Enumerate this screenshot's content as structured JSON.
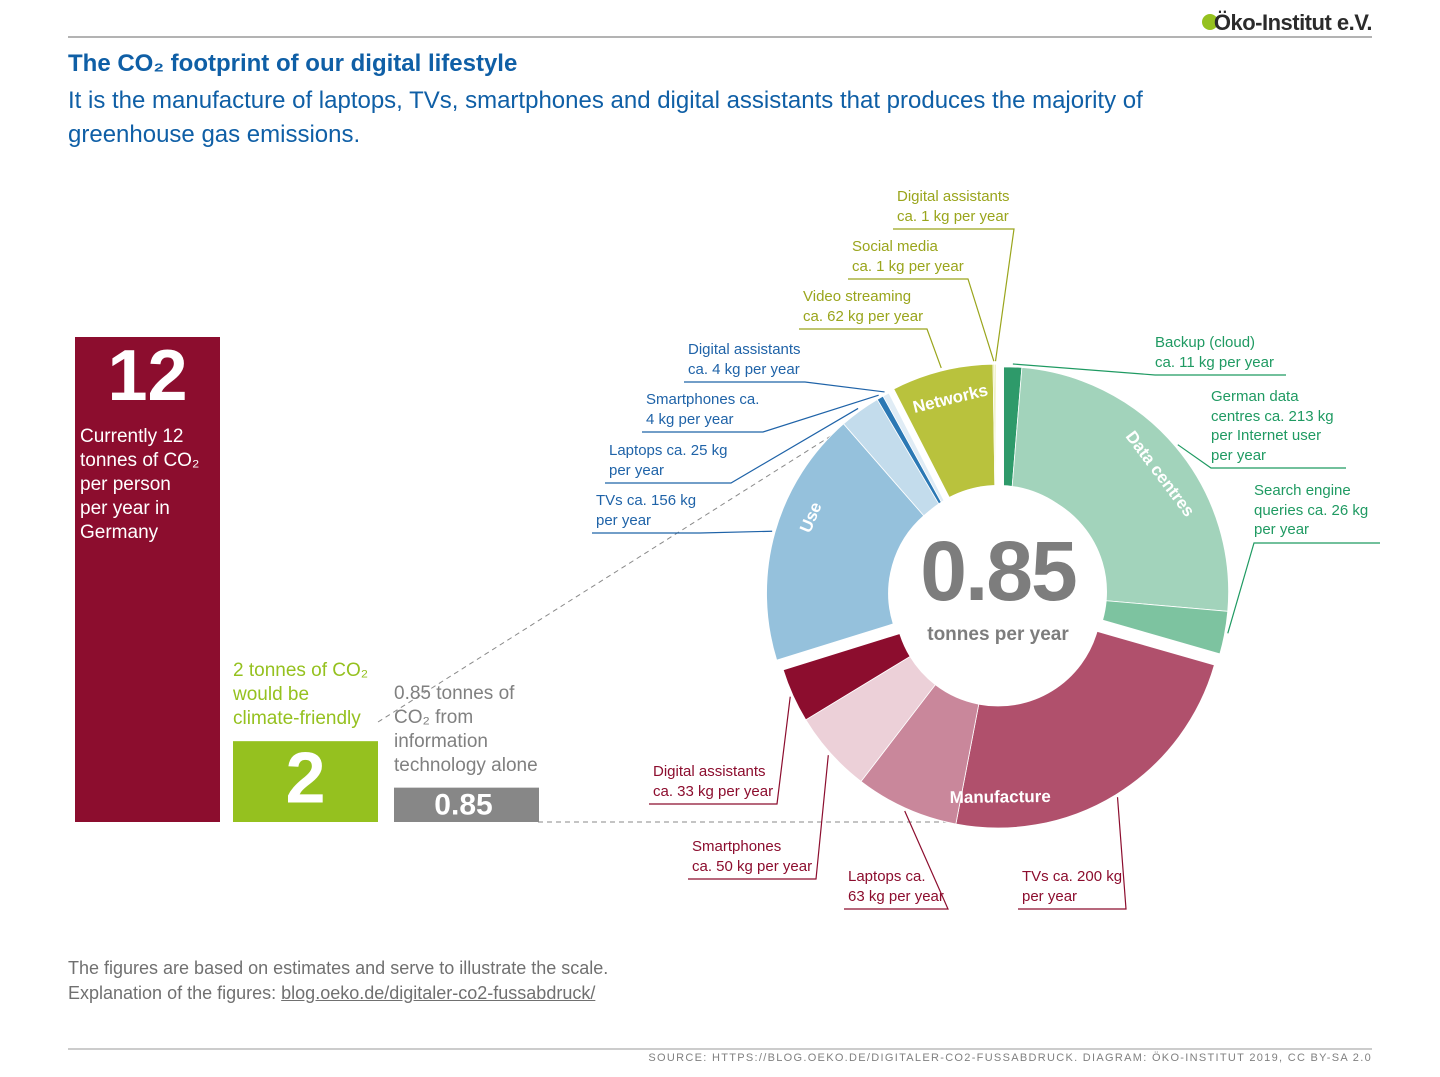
{
  "header": {
    "logo": "Öko-Institut e.V.",
    "title": "The CO₂ footprint of our digital lifestyle",
    "subtitle": "It is the manufacture of laptops, TVs, smartphones and digital assistants that produces the majority of greenhouse gas emissions."
  },
  "chart_data": [
    {
      "type": "bar",
      "categories": [
        "Currently 12\ntonnes of CO₂\nper person\nper year in\nGermany",
        "2 tonnes of CO₂\nwould be\nclimate-friendly",
        "0.85 tonnes of\nCO₂ from\ninformation\ntechnology alone"
      ],
      "values": [
        12,
        2,
        0.85
      ],
      "colors": [
        "#8c0d2e",
        "#95c11f",
        "#878787"
      ]
    },
    {
      "type": "donut",
      "center_value": 0.85,
      "center_label": "tonnes per year",
      "series": [
        {
          "name": "Data centres",
          "color": "#1f9a62",
          "colors": [
            "#2e9a6a",
            "#a2d3bb",
            "#7dc3a0"
          ],
          "values": [
            11,
            213,
            26
          ],
          "value_labels": [
            "Backup (cloud)\nca. 11 kg per year",
            "German data\ncentres ca. 213 kg\nper Internet user\nper year",
            "Search engine\nqueries ca. 26 kg\nper year"
          ]
        },
        {
          "name": "Manufacture",
          "color": "#8c0d2e",
          "colors": [
            "#b0506c",
            "#c9879b",
            "#ecd0d8",
            "#8c0d2e"
          ],
          "values": [
            200,
            63,
            50,
            33
          ],
          "value_labels": [
            "TVs ca. 200 kg\nper year",
            "Laptops ca.\n63 kg per year",
            "Smartphones\nca. 50 kg per year",
            "Digital assistants\nca. 33 kg per year"
          ]
        },
        {
          "name": "Use",
          "color": "#1f63a8",
          "colors": [
            "#95c1dc",
            "#c3dcec",
            "#2b78b4",
            "#e0ecf5"
          ],
          "values": [
            156,
            25,
            4,
            4
          ],
          "value_labels": [
            "TVs ca. 156 kg\nper year",
            "Laptops ca. 25 kg\nper year",
            "Smartphones ca.\n4 kg per year",
            "Digital assistants\nca. 4 kg per year"
          ]
        },
        {
          "name": "Networks",
          "color": "#9aa51c",
          "colors": [
            "#b9c23d",
            "#dfe38f",
            "#eef0c0"
          ],
          "values": [
            62,
            1,
            1
          ],
          "value_labels": [
            "Video streaming\nca. 62 kg per year",
            "Social media\nca. 1 kg per year",
            "Digital assistants\nca. 1 kg per year"
          ]
        }
      ]
    }
  ],
  "footer": {
    "note": "The figures are based on estimates and serve to illustrate the scale.",
    "explanation": "Explanation of the figures:",
    "link": "blog.oeko.de/digitaler-co2-fussabdruck/",
    "source": "SOURCE: HTTPS://BLOG.OEKO.DE/DIGITALER-CO2-FUSSABDRUCK. DIAGRAM: ÖKO-INSTITUT 2019, CC BY-SA 2.0"
  }
}
